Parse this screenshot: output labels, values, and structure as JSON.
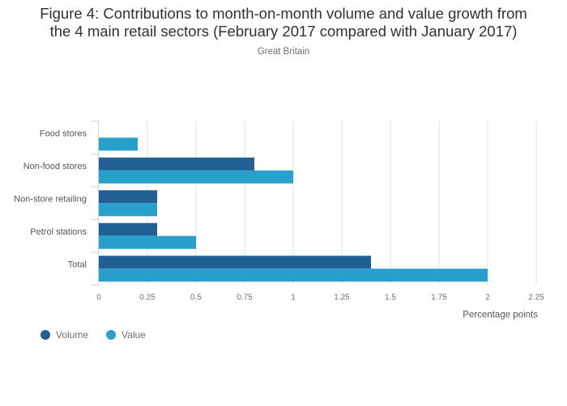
{
  "chart_data": {
    "type": "bar",
    "orientation": "horizontal",
    "title": "Figure 4: Contributions to month-on-month volume and value growth from the 4 main retail sectors (February 2017 compared with January 2017)",
    "title_line1": "Figure 4: Contributions to month-on-month volume and value growth from",
    "title_line2": "the 4 main retail sectors (February 2017 compared with January 2017)",
    "subtitle": "Great Britain",
    "categories": [
      "Food stores",
      "Non-food stores",
      "Non-store retailing",
      "Petrol stations",
      "Total"
    ],
    "series": [
      {
        "name": "Volume",
        "color": "#206095",
        "values": [
          0,
          0.8,
          0.3,
          0.3,
          1.4
        ]
      },
      {
        "name": "Value",
        "color": "#27a0cc",
        "values": [
          0.2,
          1.0,
          0.3,
          0.5,
          2.0
        ]
      }
    ],
    "xlabel": "Percentage points",
    "ylabel": "",
    "xlim": [
      0,
      2.25
    ],
    "xticks": [
      "0",
      "0.25",
      "0.5",
      "0.75",
      "1",
      "1.25",
      "1.5",
      "1.75",
      "2",
      "2.25"
    ],
    "grid": true,
    "legend_position": "bottom-left"
  }
}
